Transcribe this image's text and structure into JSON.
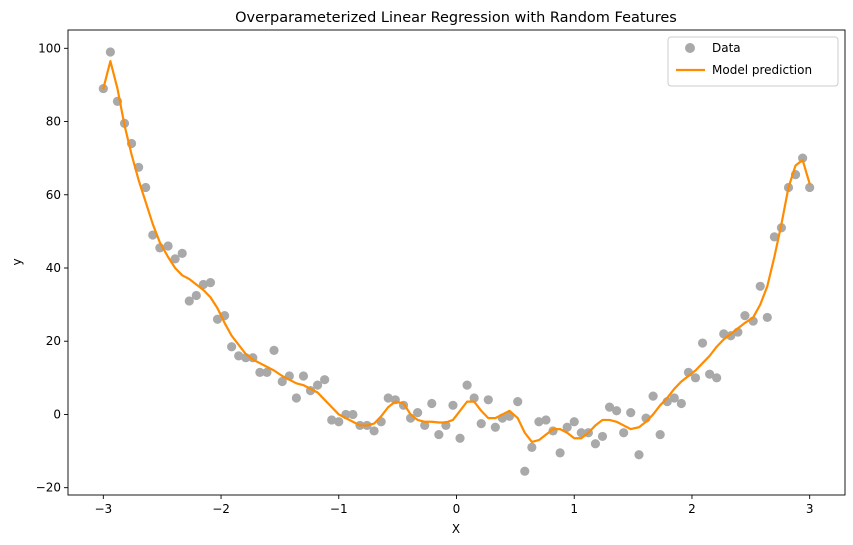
{
  "chart_data": {
    "type": "scatter",
    "title": "Overparameterized Linear Regression with Random Features",
    "xlabel": "X",
    "ylabel": "y",
    "xlim": [
      -3.3,
      3.3
    ],
    "ylim": [
      -22,
      105
    ],
    "xticks": [
      -3,
      -2,
      -1,
      0,
      1,
      2,
      3
    ],
    "yticks": [
      -20,
      0,
      20,
      40,
      60,
      80,
      100
    ],
    "grid": false,
    "legend": "top-right",
    "colors": {
      "data": "#a9a9a9",
      "model": "#ff8c00"
    },
    "series": [
      {
        "name": "Data",
        "kind": "scatter",
        "x": [
          -3.0,
          -2.94,
          -2.88,
          -2.82,
          -2.76,
          -2.7,
          -2.64,
          -2.58,
          -2.52,
          -2.45,
          -2.39,
          -2.33,
          -2.27,
          -2.21,
          -2.15,
          -2.09,
          -2.03,
          -1.97,
          -1.91,
          -1.85,
          -1.79,
          -1.73,
          -1.67,
          -1.61,
          -1.55,
          -1.48,
          -1.42,
          -1.36,
          -1.3,
          -1.24,
          -1.18,
          -1.12,
          -1.06,
          -1.0,
          -0.94,
          -0.88,
          -0.82,
          -0.76,
          -0.7,
          -0.64,
          -0.58,
          -0.52,
          -0.45,
          -0.39,
          -0.33,
          -0.27,
          -0.21,
          -0.15,
          -0.09,
          -0.03,
          0.03,
          0.09,
          0.15,
          0.21,
          0.27,
          0.33,
          0.39,
          0.45,
          0.52,
          0.58,
          0.64,
          0.7,
          0.76,
          0.82,
          0.88,
          0.94,
          1.0,
          1.06,
          1.12,
          1.18,
          1.24,
          1.3,
          1.36,
          1.42,
          1.48,
          1.55,
          1.61,
          1.67,
          1.73,
          1.79,
          1.85,
          1.91,
          1.97,
          2.03,
          2.09,
          2.15,
          2.21,
          2.27,
          2.33,
          2.39,
          2.45,
          2.52,
          2.58,
          2.64,
          2.7,
          2.76,
          2.82,
          2.88,
          2.94,
          3.0
        ],
        "y": [
          89,
          99,
          85.5,
          79.5,
          74,
          67.5,
          62,
          49,
          45.5,
          46,
          42.5,
          44,
          31,
          32.5,
          35.5,
          36,
          26,
          27,
          18.5,
          16,
          15.5,
          15.5,
          11.5,
          11.5,
          17.5,
          9,
          10.5,
          4.5,
          10.5,
          6.5,
          8,
          9.5,
          -1.5,
          -2,
          0,
          0,
          -3,
          -3,
          -4.5,
          -2,
          4.5,
          4,
          2.5,
          -1,
          0.5,
          -3,
          3,
          -5.5,
          -3,
          2.5,
          -6.5,
          8,
          4.5,
          -2.5,
          4,
          -3.5,
          -1,
          -0.5,
          3.5,
          -15.5,
          -9,
          -2,
          -1.5,
          -4.5,
          -10.5,
          -3.5,
          -2,
          -5,
          -5,
          -8,
          -6,
          2,
          1,
          -5,
          0.5,
          -11,
          -1,
          5,
          -5.5,
          3.5,
          4.5,
          3,
          11.5,
          10,
          19.5,
          11,
          10,
          22,
          21.5,
          22.5,
          27,
          25.5,
          35,
          26.5,
          48.5,
          51,
          62,
          65.5,
          70,
          62
        ]
      },
      {
        "name": "Model prediction",
        "kind": "line",
        "x": [
          -3.0,
          -2.94,
          -2.88,
          -2.82,
          -2.76,
          -2.7,
          -2.64,
          -2.58,
          -2.52,
          -2.45,
          -2.39,
          -2.33,
          -2.27,
          -2.21,
          -2.15,
          -2.09,
          -2.03,
          -1.97,
          -1.91,
          -1.85,
          -1.79,
          -1.73,
          -1.67,
          -1.61,
          -1.55,
          -1.48,
          -1.42,
          -1.36,
          -1.3,
          -1.24,
          -1.18,
          -1.12,
          -1.06,
          -1.0,
          -0.94,
          -0.88,
          -0.82,
          -0.76,
          -0.7,
          -0.64,
          -0.58,
          -0.52,
          -0.45,
          -0.39,
          -0.33,
          -0.27,
          -0.21,
          -0.15,
          -0.09,
          -0.03,
          0.03,
          0.09,
          0.15,
          0.21,
          0.27,
          0.33,
          0.39,
          0.45,
          0.52,
          0.58,
          0.64,
          0.7,
          0.76,
          0.82,
          0.88,
          0.94,
          1.0,
          1.06,
          1.12,
          1.18,
          1.24,
          1.3,
          1.36,
          1.42,
          1.48,
          1.55,
          1.61,
          1.67,
          1.73,
          1.79,
          1.85,
          1.91,
          1.97,
          2.03,
          2.09,
          2.15,
          2.21,
          2.27,
          2.33,
          2.39,
          2.45,
          2.52,
          2.58,
          2.64,
          2.7,
          2.76,
          2.82,
          2.88,
          2.94,
          3.0
        ],
        "y": [
          89,
          96.5,
          89,
          79,
          71,
          64,
          58,
          52,
          47,
          43,
          40,
          38,
          37,
          35.5,
          34,
          32,
          29,
          25,
          21.5,
          19,
          16.5,
          15,
          14,
          13,
          12,
          10.5,
          9.5,
          8.5,
          8,
          7,
          6,
          4,
          2,
          0,
          -1,
          -2,
          -3,
          -3,
          -2.5,
          -0.5,
          2,
          3.5,
          3,
          0,
          -1.5,
          -2,
          -2,
          -2.2,
          -2.2,
          -1.5,
          1,
          3.5,
          3.5,
          1,
          -1,
          -1,
          0,
          1,
          -1,
          -5,
          -7.5,
          -7,
          -5.5,
          -4,
          -4,
          -5,
          -6.5,
          -6.5,
          -5,
          -3,
          -1.5,
          -1.5,
          -2,
          -3,
          -4,
          -3.5,
          -2,
          0,
          2.5,
          4.5,
          7,
          9,
          10.5,
          12,
          14,
          16,
          18.5,
          20.5,
          22,
          23.5,
          25,
          26.5,
          30,
          35,
          43,
          52,
          62,
          68,
          69.5,
          63
        ]
      }
    ]
  }
}
